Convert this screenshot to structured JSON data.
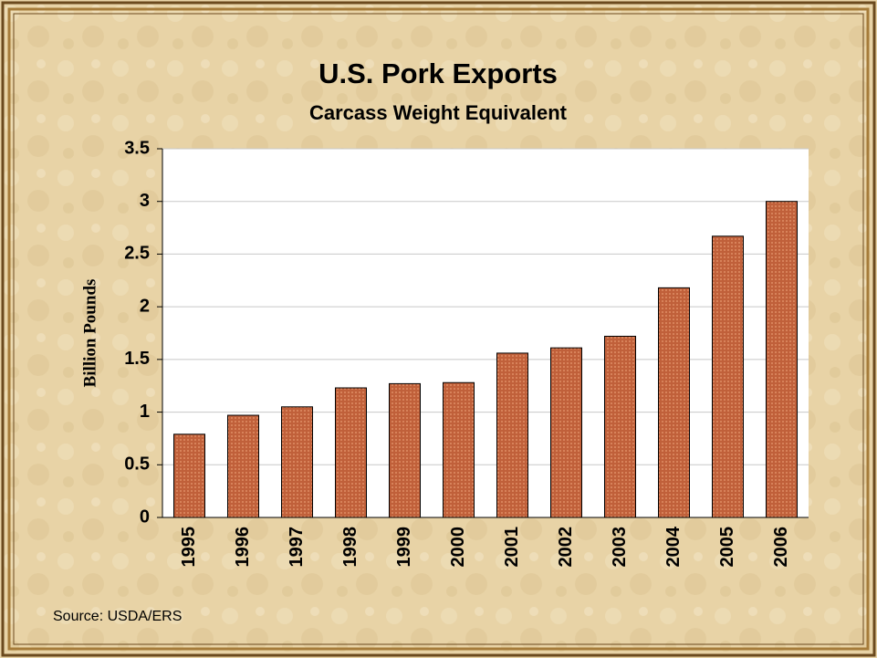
{
  "chart_data": {
    "type": "bar",
    "title": "U.S. Pork Exports",
    "subtitle": "Carcass Weight Equivalent",
    "y_label": "Billion Pounds",
    "source": "Source: USDA/ERS",
    "categories": [
      "1995",
      "1996",
      "1997",
      "1998",
      "1999",
      "2000",
      "2001",
      "2002",
      "2003",
      "2004",
      "2005",
      "2006"
    ],
    "values": [
      0.79,
      0.97,
      1.05,
      1.23,
      1.27,
      1.28,
      1.56,
      1.61,
      1.72,
      2.18,
      2.67,
      3.0
    ],
    "color": "#c0603a",
    "ylim": [
      0,
      3.5
    ],
    "yticks": [
      0,
      0.5,
      1,
      1.5,
      2,
      2.5,
      3,
      3.5
    ],
    "grid": true
  }
}
